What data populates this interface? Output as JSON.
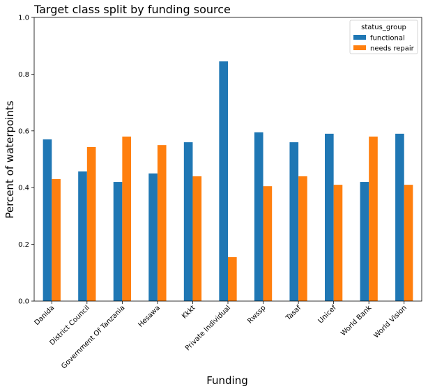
{
  "chart_data": {
    "type": "bar",
    "title": "Target class split by funding source",
    "xlabel": "Funding",
    "ylabel": "Percent of waterpoints",
    "ylim": [
      0,
      1.0
    ],
    "yticks": [
      "0.0",
      "0.2",
      "0.4",
      "0.6",
      "0.8",
      "1.0"
    ],
    "categories": [
      "Danida",
      "District Council",
      "Government Of Tanzania",
      "Hesawa",
      "Kkkt",
      "Private Individual",
      "Rwssp",
      "Tasaf",
      "Unicef",
      "World Bank",
      "World Vision"
    ],
    "legend_title": "status_group",
    "legend_position": "top-right",
    "grid": false,
    "series": [
      {
        "name": "functional",
        "color": "#1f77b4",
        "values": [
          0.57,
          0.457,
          0.42,
          0.45,
          0.56,
          0.845,
          0.595,
          0.56,
          0.59,
          0.42,
          0.59
        ]
      },
      {
        "name": "needs repair",
        "color": "#ff7f0e",
        "values": [
          0.43,
          0.543,
          0.58,
          0.55,
          0.44,
          0.155,
          0.405,
          0.44,
          0.41,
          0.58,
          0.41
        ]
      }
    ]
  }
}
